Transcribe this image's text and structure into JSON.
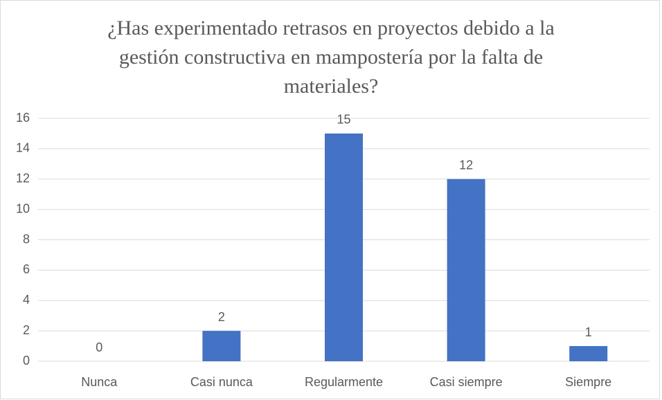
{
  "chart_data": {
    "type": "bar",
    "title": "¿Has experimentado retrasos en proyectos debido a la gestión constructiva en mampostería por la falta de materiales?",
    "categories": [
      "Nunca",
      "Casi nunca",
      "Regularmente",
      "Casi siempre",
      "Siempre"
    ],
    "values": [
      0,
      2,
      15,
      12,
      1
    ],
    "color": "#4472c4",
    "ylim": [
      0,
      16
    ],
    "yticks": [
      0,
      2,
      4,
      6,
      8,
      10,
      12,
      14,
      16
    ],
    "grid": true
  }
}
